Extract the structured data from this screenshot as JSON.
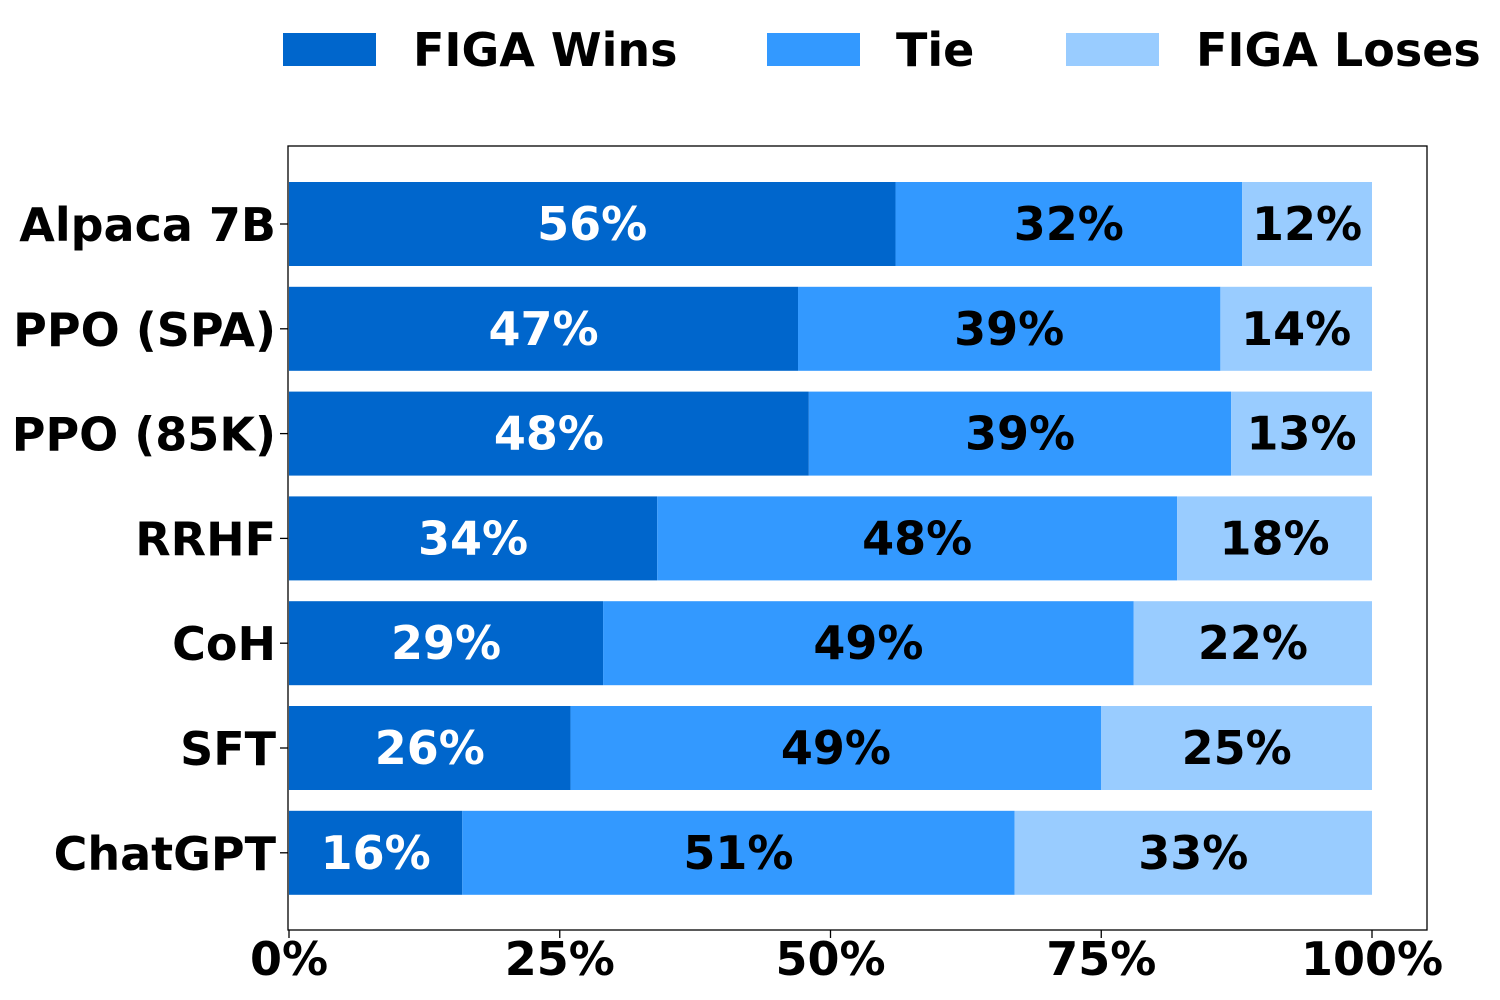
{
  "chart_data": {
    "type": "bar",
    "orientation": "horizontal",
    "stacked": true,
    "categories": [
      "Alpaca 7B",
      "PPO (SPA)",
      "PPO (85K)",
      "RRHF",
      "CoH",
      "SFT",
      "ChatGPT"
    ],
    "series": [
      {
        "name": "FIGA Wins",
        "color": "#0066cc",
        "label_color": "#ffffff",
        "values": [
          56,
          47,
          48,
          34,
          29,
          26,
          16
        ]
      },
      {
        "name": "Tie",
        "color": "#3399ff",
        "label_color": "#000000",
        "values": [
          32,
          39,
          39,
          48,
          49,
          49,
          51
        ]
      },
      {
        "name": "FIGA Loses",
        "color": "#99ccff",
        "label_color": "#000000",
        "values": [
          12,
          14,
          13,
          18,
          22,
          25,
          33
        ]
      }
    ],
    "value_suffix": "%",
    "xlim": [
      0,
      100
    ],
    "xticks": [
      {
        "value": 0,
        "label": "0%"
      },
      {
        "value": 25,
        "label": "25%"
      },
      {
        "value": 50,
        "label": "50%"
      },
      {
        "value": 75,
        "label": "75%"
      },
      {
        "value": 100,
        "label": "100%"
      }
    ],
    "legend_position": "top",
    "grid": false,
    "title": "",
    "xlabel": "",
    "ylabel": ""
  }
}
